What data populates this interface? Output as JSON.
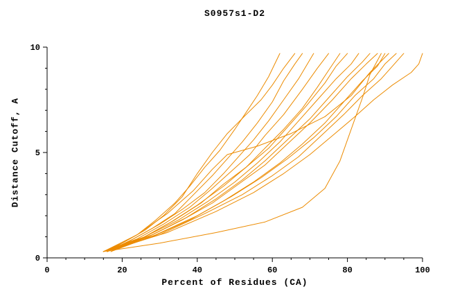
{
  "chart_data": {
    "type": "line",
    "title": "S0957s1-D2",
    "xlabel": "Percent of Residues (CA)",
    "ylabel": "Distance Cutoff, A",
    "xlim": [
      0,
      100
    ],
    "ylim": [
      0,
      10
    ],
    "xticks": [
      0,
      20,
      40,
      60,
      80,
      100
    ],
    "yticks": [
      0,
      5,
      10
    ],
    "x_minor_step": 5,
    "y_minor_step": 1,
    "line_color": "#ec8b00",
    "axis_color": "#000000",
    "grid": false,
    "legend": "none",
    "series": [
      {
        "points": [
          [
            15,
            0.3
          ],
          [
            19,
            0.6
          ],
          [
            24,
            1.1
          ],
          [
            29,
            1.8
          ],
          [
            34,
            2.6
          ],
          [
            38,
            3.4
          ],
          [
            42,
            4.3
          ],
          [
            46,
            5.1
          ],
          [
            50,
            6.1
          ],
          [
            53,
            6.9
          ],
          [
            56,
            7.7
          ],
          [
            59,
            8.6
          ],
          [
            62,
            9.7
          ]
        ]
      },
      {
        "points": [
          [
            15,
            0.3
          ],
          [
            20,
            0.7
          ],
          [
            26,
            1.3
          ],
          [
            31,
            2.0
          ],
          [
            36,
            2.9
          ],
          [
            40,
            4.0
          ],
          [
            44,
            5.0
          ],
          [
            48,
            5.9
          ],
          [
            53,
            6.8
          ],
          [
            57,
            7.5
          ],
          [
            60,
            8.2
          ],
          [
            63,
            9.0
          ],
          [
            66,
            9.7
          ]
        ]
      },
      {
        "points": [
          [
            16,
            0.3
          ],
          [
            22,
            0.8
          ],
          [
            28,
            1.4
          ],
          [
            34,
            2.1
          ],
          [
            39,
            3.0
          ],
          [
            44,
            3.9
          ],
          [
            48,
            4.7
          ],
          [
            52,
            5.5
          ],
          [
            56,
            6.4
          ],
          [
            60,
            7.4
          ],
          [
            63,
            8.4
          ],
          [
            66,
            9.2
          ],
          [
            68,
            9.7
          ]
        ]
      },
      {
        "points": [
          [
            16,
            0.3
          ],
          [
            23,
            0.9
          ],
          [
            30,
            1.6
          ],
          [
            36,
            2.3
          ],
          [
            42,
            3.1
          ],
          [
            47,
            4.0
          ],
          [
            51,
            4.8
          ],
          [
            55,
            5.6
          ],
          [
            59,
            6.5
          ],
          [
            63,
            7.5
          ],
          [
            67,
            8.5
          ],
          [
            71,
            9.7
          ]
        ]
      },
      {
        "points": [
          [
            15,
            0.3
          ],
          [
            24,
            0.9
          ],
          [
            31,
            1.6
          ],
          [
            38,
            2.4
          ],
          [
            44,
            3.3
          ],
          [
            49,
            4.1
          ],
          [
            54,
            4.9
          ],
          [
            58,
            5.8
          ],
          [
            63,
            6.8
          ],
          [
            68,
            8.0
          ],
          [
            72,
            9.0
          ],
          [
            75,
            9.7
          ]
        ]
      },
      {
        "points": [
          [
            17,
            0.3
          ],
          [
            26,
            1.0
          ],
          [
            34,
            1.8
          ],
          [
            41,
            2.6
          ],
          [
            47,
            3.5
          ],
          [
            53,
            4.3
          ],
          [
            58,
            5.2
          ],
          [
            63,
            6.1
          ],
          [
            68,
            7.1
          ],
          [
            72,
            8.1
          ],
          [
            75,
            8.9
          ],
          [
            78,
            9.7
          ]
        ]
      },
      {
        "points": [
          [
            16,
            0.3
          ],
          [
            25,
            0.9
          ],
          [
            33,
            1.7
          ],
          [
            40,
            2.5
          ],
          [
            47,
            3.4
          ],
          [
            53,
            4.3
          ],
          [
            59,
            5.2
          ],
          [
            64,
            6.2
          ],
          [
            69,
            7.2
          ],
          [
            74,
            8.3
          ],
          [
            77,
            9.1
          ],
          [
            80,
            9.7
          ]
        ]
      },
      {
        "points": [
          [
            15,
            0.3
          ],
          [
            26,
            1.0
          ],
          [
            35,
            1.8
          ],
          [
            43,
            2.7
          ],
          [
            50,
            3.6
          ],
          [
            56,
            4.5
          ],
          [
            62,
            5.5
          ],
          [
            67,
            6.5
          ],
          [
            72,
            7.5
          ],
          [
            77,
            8.5
          ],
          [
            81,
            9.2
          ],
          [
            83,
            9.7
          ]
        ]
      },
      {
        "points": [
          [
            17,
            0.4
          ],
          [
            28,
            1.1
          ],
          [
            37,
            1.9
          ],
          [
            45,
            2.8
          ],
          [
            52,
            3.7
          ],
          [
            58,
            4.6
          ],
          [
            64,
            5.6
          ],
          [
            70,
            6.6
          ],
          [
            75,
            7.6
          ],
          [
            80,
            8.6
          ],
          [
            84,
            9.3
          ],
          [
            86,
            9.7
          ]
        ]
      },
      {
        "points": [
          [
            16,
            0.3
          ],
          [
            27,
            1.0
          ],
          [
            36,
            1.8
          ],
          [
            44,
            2.6
          ],
          [
            51,
            3.5
          ],
          [
            58,
            4.4
          ],
          [
            64,
            5.4
          ],
          [
            70,
            6.4
          ],
          [
            76,
            7.5
          ],
          [
            81,
            8.5
          ],
          [
            85,
            9.2
          ],
          [
            88,
            9.7
          ]
        ]
      },
      {
        "points": [
          [
            15,
            0.3
          ],
          [
            30,
            0.7
          ],
          [
            45,
            1.2
          ],
          [
            58,
            1.7
          ],
          [
            68,
            2.4
          ],
          [
            74,
            3.3
          ],
          [
            78,
            4.6
          ],
          [
            80,
            5.6
          ],
          [
            82,
            6.6
          ],
          [
            84,
            7.6
          ],
          [
            86,
            8.7
          ],
          [
            89,
            9.7
          ]
        ]
      },
      {
        "points": [
          [
            16,
            0.3
          ],
          [
            28,
            1.0
          ],
          [
            38,
            1.8
          ],
          [
            47,
            2.7
          ],
          [
            55,
            3.6
          ],
          [
            62,
            4.5
          ],
          [
            68,
            5.4
          ],
          [
            74,
            6.4
          ],
          [
            79,
            7.4
          ],
          [
            84,
            8.4
          ],
          [
            88,
            9.1
          ],
          [
            90,
            9.7
          ]
        ]
      },
      {
        "points": [
          [
            15,
            0.3
          ],
          [
            24,
            1.1
          ],
          [
            32,
            2.1
          ],
          [
            39,
            3.2
          ],
          [
            44,
            4.2
          ],
          [
            48,
            4.9
          ],
          [
            56,
            5.3
          ],
          [
            65,
            5.9
          ],
          [
            74,
            6.7
          ],
          [
            81,
            7.7
          ],
          [
            86,
            8.8
          ],
          [
            91,
            9.7
          ]
        ]
      },
      {
        "points": [
          [
            17,
            0.3
          ],
          [
            29,
            1.1
          ],
          [
            40,
            2.0
          ],
          [
            49,
            2.9
          ],
          [
            57,
            3.8
          ],
          [
            64,
            4.7
          ],
          [
            71,
            5.7
          ],
          [
            77,
            6.7
          ],
          [
            82,
            7.7
          ],
          [
            87,
            8.5
          ],
          [
            90,
            9.2
          ],
          [
            93,
            9.7
          ]
        ]
      },
      {
        "points": [
          [
            16,
            0.3
          ],
          [
            30,
            1.1
          ],
          [
            42,
            2.1
          ],
          [
            52,
            3.0
          ],
          [
            60,
            3.9
          ],
          [
            67,
            4.8
          ],
          [
            73,
            5.8
          ],
          [
            79,
            6.8
          ],
          [
            84,
            7.7
          ],
          [
            89,
            8.5
          ],
          [
            92,
            9.1
          ],
          [
            95,
            9.7
          ]
        ]
      },
      {
        "points": [
          [
            15,
            0.3
          ],
          [
            32,
            1.2
          ],
          [
            45,
            2.2
          ],
          [
            55,
            3.1
          ],
          [
            63,
            4.0
          ],
          [
            70,
            4.9
          ],
          [
            76,
            5.8
          ],
          [
            82,
            6.7
          ],
          [
            87,
            7.5
          ],
          [
            92,
            8.2
          ],
          [
            97,
            8.8
          ],
          [
            99,
            9.2
          ],
          [
            100,
            9.7
          ]
        ]
      }
    ]
  }
}
